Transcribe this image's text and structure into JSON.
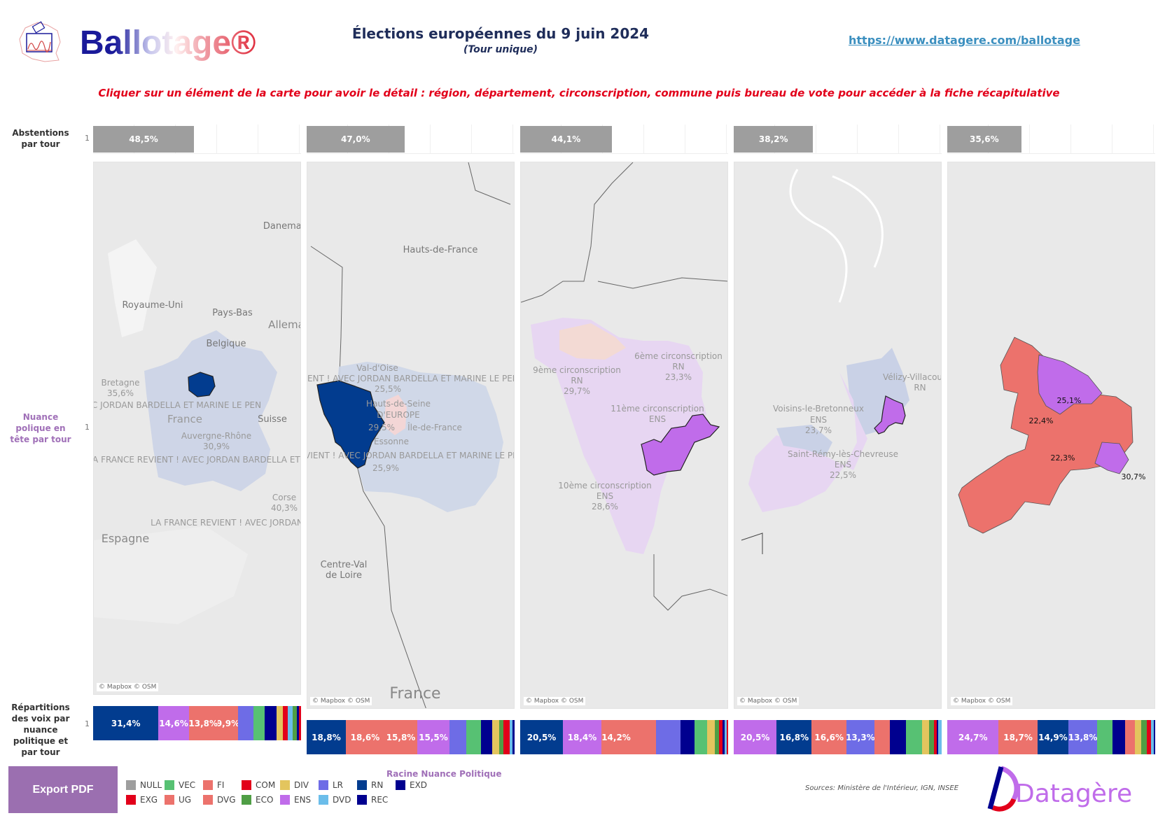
{
  "header": {
    "logo_text": "Ballotage®",
    "title": "Élections européennes du 9 juin 2024",
    "subtitle": "(Tour unique)",
    "url": "https://www.datagere.com/ballotage",
    "instruction": "Cliquer sur un élément de la carte pour avoir le détail : région, département, circonscription, commune puis bureau de vote pour accéder à la fiche récapitulative"
  },
  "row_labels": {
    "abstentions": "Abstentions par tour",
    "nuance": "Nuance polique en tête par tour",
    "repartitions": "Répartitions des voix par nuance politique et par tour",
    "tour_index": "1"
  },
  "colors": {
    "NULL": "#9e9e9e",
    "EXG": "#e2001a",
    "VEC": "#57c173",
    "UG": "#ec726c",
    "FI": "#ec726c",
    "DVG": "#ec726c",
    "COM": "#e2001a",
    "ECO": "#4f9e45",
    "DIV": "#e3c55e",
    "ENS": "#c06cea",
    "LR": "#6e6ce6",
    "DVD": "#6bbdea",
    "RN": "#023c8f",
    "REC": "#00008f",
    "EXD": "#00008f"
  },
  "panels": [
    {
      "abstention": "48,5%",
      "abstention_value": 48.5,
      "attribution": "© Mapbox © OSM",
      "labels": [
        "Danemar",
        "Royaume-Uni",
        "Pays-Bas",
        "Allema",
        "Belgique",
        "Bretagne",
        "35,6%",
        "C JORDAN BARDELLA ET MARINE LE PEN",
        "France",
        "Auvergne-Rhône",
        "30,9%",
        "Suisse",
        "LA FRANCE REVIENT ! AVEC JORDAN BARDELLA ET M",
        "Corse",
        "40,3%",
        "Espagne",
        "LA FRANCE REVIENT ! AVEC JORDAN"
      ],
      "votes": [
        [
          "RN",
          31.4,
          "31,4%"
        ],
        [
          "ENS",
          14.6,
          "14,6%"
        ],
        [
          "UG",
          13.8,
          "13,8%"
        ],
        [
          "FI",
          9.9,
          "9,9%"
        ],
        [
          "LR",
          7.3,
          ""
        ],
        [
          "VEC",
          5.5,
          ""
        ],
        [
          "REC",
          5.5,
          ""
        ],
        [
          "DIV",
          3.3,
          ""
        ],
        [
          "EXG",
          2.3,
          ""
        ],
        [
          "DVD",
          2.4,
          ""
        ],
        [
          "ECO",
          2.0,
          ""
        ],
        [
          "EXD",
          1.0,
          ""
        ],
        [
          "COM",
          0.9,
          ""
        ]
      ]
    },
    {
      "abstention": "47,0%",
      "abstention_value": 47.0,
      "attribution": "© Mapbox © OSM",
      "labels": [
        "Hauts-de-France",
        "Val-d'Oise",
        "VIENT ! AVEC JORDAN BARDELLA ET MARINE LE PEN",
        "25,5%",
        "Hauts-de-Seine",
        "D'EUROPE",
        "29,5%",
        "Île-de-France",
        "Essonne",
        "REVIENT ! AVEC JORDAN BARDELLA ET MARINE LE PEN",
        "25,9%",
        "Centre-Val de Loire",
        "France"
      ],
      "votes": [
        [
          "RN",
          18.8,
          "18,8%"
        ],
        [
          "UG",
          18.6,
          "18,6%"
        ],
        [
          "FI",
          15.8,
          "15,8%"
        ],
        [
          "ENS",
          15.5,
          "15,5%"
        ],
        [
          "LR",
          8.0,
          ""
        ],
        [
          "VEC",
          7.0,
          ""
        ],
        [
          "REC",
          5.5,
          ""
        ],
        [
          "DIV",
          3.3,
          ""
        ],
        [
          "ECO",
          2.0,
          ""
        ],
        [
          "COM",
          1.5,
          ""
        ],
        [
          "EXG",
          1.5,
          ""
        ],
        [
          "DVD",
          1.5,
          ""
        ],
        [
          "EXD",
          1.0,
          ""
        ]
      ]
    },
    {
      "abstention": "44,1%",
      "abstention_value": 44.1,
      "attribution": "© Mapbox © OSM",
      "labels": [
        "9ème circonscription",
        "RN",
        "29,7%",
        "6ème circonscription",
        "RN",
        "23,3%",
        "11ème circonscription",
        "ENS",
        "10ème circonscription",
        "ENS",
        "28,6%"
      ],
      "votes": [
        [
          "RN",
          20.5,
          "20,5%"
        ],
        [
          "ENS",
          18.4,
          "18,4%"
        ],
        [
          "UG",
          14.2,
          "14,2%"
        ],
        [
          "FI",
          12.2,
          ""
        ],
        [
          "LR",
          11.6,
          ""
        ],
        [
          "REC",
          6.7,
          ""
        ],
        [
          "VEC",
          6.1,
          ""
        ],
        [
          "DIV",
          3.7,
          ""
        ],
        [
          "ECO",
          2.0,
          ""
        ],
        [
          "EXG",
          1.5,
          ""
        ],
        [
          "EXD",
          1.0,
          ""
        ],
        [
          "DVD",
          1.0,
          ""
        ],
        [
          "COM",
          0.8,
          ""
        ]
      ]
    },
    {
      "abstention": "38,2%",
      "abstention_value": 38.2,
      "attribution": "© Mapbox © OSM",
      "labels": [
        "Vélizy-Villacoubl",
        "RN",
        "Voisins-le-Bretonneux",
        "ENS",
        "23,7%",
        "Saint-Rémy-lès-Chevreuse",
        "ENS",
        "22,5%"
      ],
      "votes": [
        [
          "ENS",
          20.5,
          "20,5%"
        ],
        [
          "RN",
          16.8,
          "16,8%"
        ],
        [
          "UG",
          16.6,
          "16,6%"
        ],
        [
          "LR",
          13.3,
          "13,3%"
        ],
        [
          "FI",
          7.3,
          ""
        ],
        [
          "REC",
          7.9,
          ""
        ],
        [
          "VEC",
          7.5,
          ""
        ],
        [
          "DIV",
          3.5,
          ""
        ],
        [
          "ECO",
          2.5,
          ""
        ],
        [
          "EXG",
          1.2,
          ""
        ],
        [
          "EXD",
          0.8,
          ""
        ],
        [
          "DVD",
          1.5,
          ""
        ]
      ]
    },
    {
      "abstention": "35,6%",
      "abstention_value": 35.6,
      "attribution": "© Mapbox © OSM",
      "labels": [
        "25,1%",
        "22,4%",
        "22,3%",
        "30,7%"
      ],
      "votes": [
        [
          "ENS",
          24.7,
          "24,7%"
        ],
        [
          "UG",
          18.7,
          "18,7%"
        ],
        [
          "RN",
          14.9,
          "14,9%"
        ],
        [
          "LR",
          13.8,
          "13,8%"
        ],
        [
          "VEC",
          7.4,
          ""
        ],
        [
          "REC",
          5.9,
          ""
        ],
        [
          "FI",
          5.0,
          ""
        ],
        [
          "DIV",
          3.0,
          ""
        ],
        [
          "ECO",
          2.5,
          ""
        ],
        [
          "COM",
          1.2,
          ""
        ],
        [
          "EXG",
          1.0,
          ""
        ],
        [
          "DVD",
          1.2,
          ""
        ],
        [
          "EXD",
          0.7,
          ""
        ]
      ]
    }
  ],
  "legend": {
    "title": "Racine Nuance Politique",
    "items": [
      "NULL",
      "VEC",
      "FI",
      "COM",
      "DIV",
      "LR",
      "RN",
      "EXD",
      "EXG",
      "UG",
      "DVG",
      "ECO",
      "ENS",
      "DVD",
      "REC"
    ]
  },
  "footer": {
    "export_label": "Export PDF",
    "sources": "Sources: Ministère de l'Intérieur, IGN, INSEE",
    "brand": "Datagère®"
  }
}
